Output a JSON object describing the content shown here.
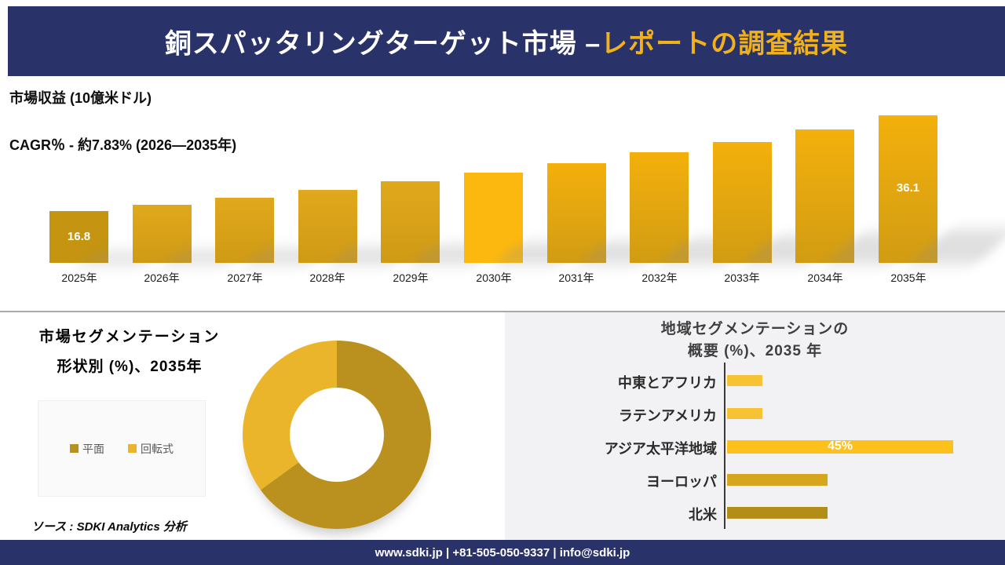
{
  "header": {
    "title_white": "銅スパッタリングターゲット市場 –",
    "title_gold": "レポートの調査結果"
  },
  "revenue_section": {
    "metric_label": "市場収益 (10億米ドル)",
    "cagr_label": "CAGR％ - 約7.83% (2026―2035年)"
  },
  "chart_data": [
    {
      "type": "bar",
      "title": "市場収益 (10億米ドル)",
      "subtitle": "CAGR％ - 約7.83% (2026―2035年)",
      "categories": [
        "2025年",
        "2026年",
        "2027年",
        "2028年",
        "2029年",
        "2030年",
        "2031年",
        "2032年",
        "2033年",
        "2034年",
        "2035年"
      ],
      "values": [
        16.8,
        18.1,
        19.5,
        21.1,
        22.8,
        24.6,
        26.5,
        28.6,
        30.8,
        33.2,
        36.1
      ],
      "labeled_points": {
        "2025年": "16.8",
        "2035年": "36.1"
      },
      "xlabel": "",
      "ylabel": "10億米ドル",
      "grid": false,
      "note": "only 2025 and 2035 values are printed on the chart; intermediate values estimated from bar heights / 7.83% CAGR"
    },
    {
      "type": "pie",
      "title": "市場セグメンテーション 形状別 (%)、2035年",
      "categories": [
        "平面",
        "回転式"
      ],
      "values": [
        65,
        35
      ],
      "legend_position": "left",
      "note": "donut chart; slice percentages estimated from arc angles (no data labels shown)"
    },
    {
      "type": "bar",
      "orientation": "horizontal",
      "title": "地域セグメンテーションの概要 (%)、2035 年",
      "categories": [
        "中東とアフリカ",
        "ラテンアメリカ",
        "アジア太平洋地域",
        "ヨーロッパ",
        "北米"
      ],
      "values": [
        7,
        7,
        45,
        20,
        20
      ],
      "labeled_points": {
        "アジア太平洋地域": "45%"
      },
      "grid": false,
      "note": "only アジア太平洋地域 (45%) is labeled; other values estimated from bar lengths"
    }
  ],
  "segmentation_panel": {
    "title_line1": "市場セグメンテーション",
    "title_line2": "形状別 (%)、2035年",
    "legend": [
      "平面",
      "回転式"
    ],
    "source": "ソース : SDKI Analytics 分析"
  },
  "region_panel": {
    "title_line1": "地域セグメンテーションの",
    "title_line2": "概要 (%)、2035 年"
  },
  "footer": {
    "text": "www.sdki.jp | +81-505-050-9337 | info@sdki.jp"
  },
  "colors": {
    "navy": "#2a3369",
    "title_gold": "#f0b11c",
    "bar_first": "#c59410",
    "bar_mid_top": "#e0a81c",
    "bar_mid_bottom": "#cf9a15",
    "bar_bright": "#fcb80e",
    "bar_grad_top": "#f4b00c",
    "bar_grad_bottom": "#d19c13",
    "donut_dark": "#ba901e",
    "donut_light": "#eab42b",
    "region_yellow": "#f6c334",
    "region_bright": "#fcc11a",
    "region_gold": "#d7a61f",
    "region_dark": "#b28d18",
    "panel_bg": "#f2f2f4"
  }
}
